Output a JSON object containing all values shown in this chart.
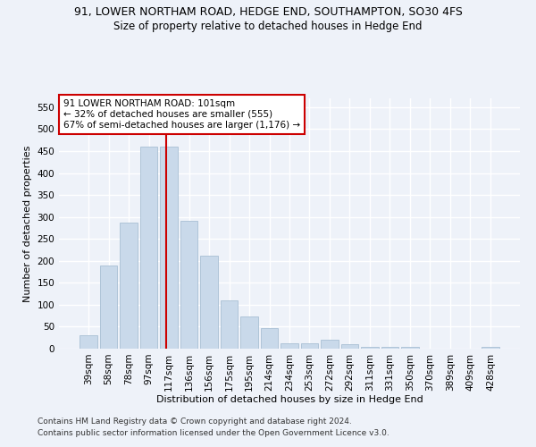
{
  "title1": "91, LOWER NORTHAM ROAD, HEDGE END, SOUTHAMPTON, SO30 4FS",
  "title2": "Size of property relative to detached houses in Hedge End",
  "xlabel": "Distribution of detached houses by size in Hedge End",
  "ylabel": "Number of detached properties",
  "categories": [
    "39sqm",
    "58sqm",
    "78sqm",
    "97sqm",
    "117sqm",
    "136sqm",
    "156sqm",
    "175sqm",
    "195sqm",
    "214sqm",
    "234sqm",
    "253sqm",
    "272sqm",
    "292sqm",
    "311sqm",
    "331sqm",
    "350sqm",
    "370sqm",
    "389sqm",
    "409sqm",
    "428sqm"
  ],
  "values": [
    30,
    190,
    288,
    460,
    460,
    292,
    212,
    110,
    74,
    47,
    13,
    13,
    20,
    10,
    5,
    5,
    5,
    0,
    0,
    0,
    5
  ],
  "bar_color": "#c9d9ea",
  "bar_edge_color": "#a8bfd4",
  "annotation_text_line1": "91 LOWER NORTHAM ROAD: 101sqm",
  "annotation_text_line2": "← 32% of detached houses are smaller (555)",
  "annotation_text_line3": "67% of semi-detached houses are larger (1,176) →",
  "annotation_box_color": "#ffffff",
  "annotation_box_edge_color": "#cc0000",
  "vline_color": "#cc0000",
  "ylim": [
    0,
    570
  ],
  "yticks": [
    0,
    50,
    100,
    150,
    200,
    250,
    300,
    350,
    400,
    450,
    500,
    550
  ],
  "footnote1": "Contains HM Land Registry data © Crown copyright and database right 2024.",
  "footnote2": "Contains public sector information licensed under the Open Government Licence v3.0.",
  "background_color": "#eef2f9",
  "plot_background_color": "#eef2f9",
  "grid_color": "#ffffff",
  "title1_fontsize": 9,
  "title2_fontsize": 8.5,
  "axis_label_fontsize": 8,
  "tick_fontsize": 7.5,
  "annotation_fontsize": 7.5,
  "footnote_fontsize": 6.5,
  "vline_x": 3.85
}
